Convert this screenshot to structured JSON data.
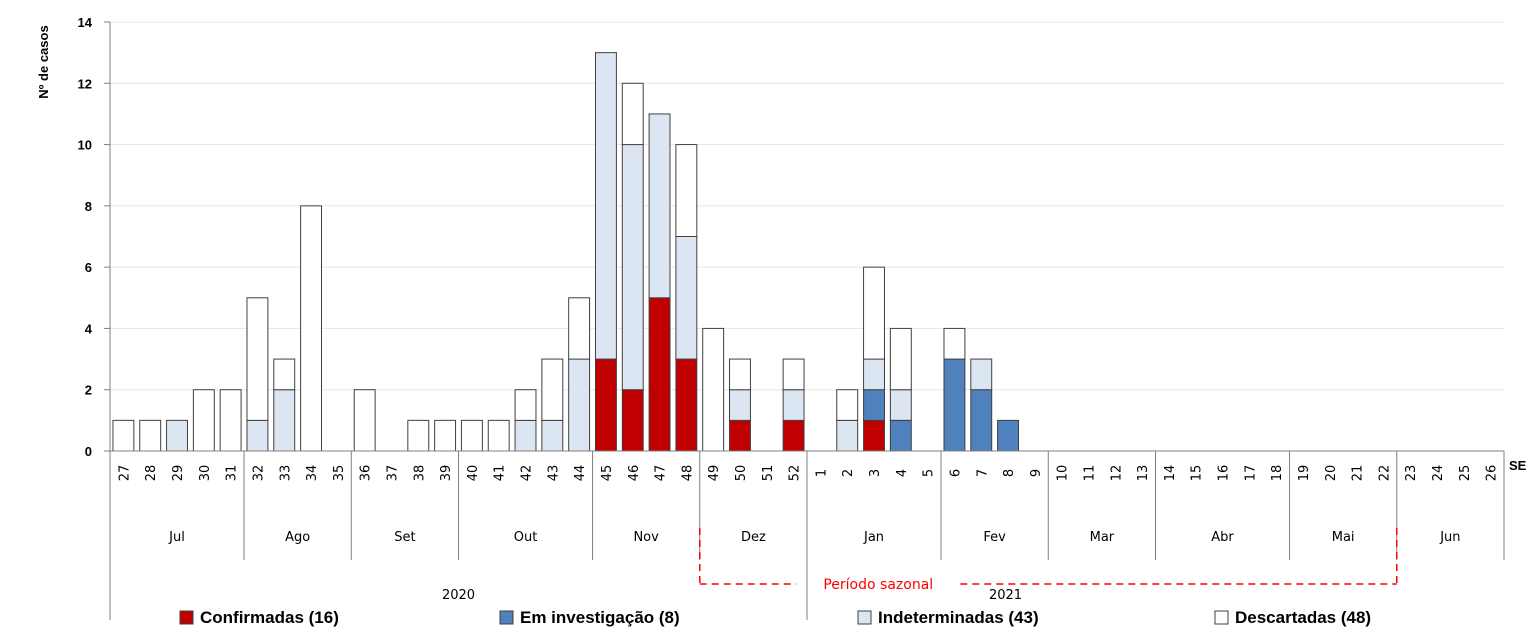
{
  "chart_data": {
    "type": "bar",
    "stacked": true,
    "ylabel": "Nº de casos",
    "xlabel": "SE",
    "ylim": [
      0,
      14
    ],
    "yticks": [
      0,
      2,
      4,
      6,
      8,
      10,
      12,
      14
    ],
    "categories": [
      "27",
      "28",
      "29",
      "30",
      "31",
      "32",
      "33",
      "34",
      "35",
      "36",
      "37",
      "38",
      "39",
      "40",
      "41",
      "42",
      "43",
      "44",
      "45",
      "46",
      "47",
      "48",
      "49",
      "50",
      "51",
      "52",
      "1",
      "2",
      "3",
      "4",
      "5",
      "6",
      "7",
      "8",
      "9",
      "10",
      "11",
      "12",
      "13",
      "14",
      "15",
      "16",
      "17",
      "18",
      "19",
      "20",
      "21",
      "22",
      "23",
      "24",
      "25",
      "26"
    ],
    "months": [
      {
        "label": "Jul",
        "count": 5
      },
      {
        "label": "Ago",
        "count": 4
      },
      {
        "label": "Set",
        "count": 4
      },
      {
        "label": "Out",
        "count": 5
      },
      {
        "label": "Nov",
        "count": 4
      },
      {
        "label": "Dez",
        "count": 4
      },
      {
        "label": "Jan",
        "count": 5
      },
      {
        "label": "Fev",
        "count": 4
      },
      {
        "label": "Mar",
        "count": 4
      },
      {
        "label": "Abr",
        "count": 5
      },
      {
        "label": "Mai",
        "count": 4
      },
      {
        "label": "Jun",
        "count": 4
      }
    ],
    "years": [
      {
        "label": "2020",
        "count": 26
      },
      {
        "label": "2021",
        "count": 26
      }
    ],
    "series": [
      {
        "name": "Confirmadas (16)",
        "color": "#c00000",
        "values": [
          0,
          0,
          0,
          0,
          0,
          0,
          0,
          0,
          0,
          0,
          0,
          0,
          0,
          0,
          0,
          0,
          0,
          0,
          3,
          2,
          5,
          3,
          0,
          1,
          0,
          1,
          0,
          0,
          1,
          0,
          0,
          0,
          0,
          0,
          0,
          0,
          0,
          0,
          0,
          0,
          0,
          0,
          0,
          0,
          0,
          0,
          0,
          0,
          0,
          0,
          0,
          0
        ]
      },
      {
        "name": "Em investigação (8)",
        "color": "#4f81bd",
        "values": [
          0,
          0,
          0,
          0,
          0,
          0,
          0,
          0,
          0,
          0,
          0,
          0,
          0,
          0,
          0,
          0,
          0,
          0,
          0,
          0,
          0,
          0,
          0,
          0,
          0,
          0,
          0,
          0,
          1,
          1,
          0,
          3,
          2,
          1,
          0,
          0,
          0,
          0,
          0,
          0,
          0,
          0,
          0,
          0,
          0,
          0,
          0,
          0,
          0,
          0,
          0,
          0
        ]
      },
      {
        "name": "Indeterminadas (43)",
        "color": "#dce6f2",
        "values": [
          0,
          0,
          1,
          0,
          0,
          1,
          2,
          0,
          0,
          0,
          0,
          0,
          0,
          0,
          0,
          1,
          1,
          3,
          10,
          8,
          6,
          4,
          0,
          1,
          0,
          1,
          0,
          1,
          1,
          1,
          0,
          0,
          1,
          0,
          0,
          0,
          0,
          0,
          0,
          0,
          0,
          0,
          0,
          0,
          0,
          0,
          0,
          0,
          0,
          0,
          0,
          0
        ]
      },
      {
        "name": "Descartadas (48)",
        "color": "#ffffff",
        "values": [
          1,
          1,
          0,
          2,
          2,
          4,
          1,
          8,
          0,
          2,
          0,
          1,
          1,
          1,
          1,
          1,
          2,
          2,
          0,
          2,
          0,
          3,
          4,
          1,
          0,
          1,
          0,
          1,
          3,
          2,
          0,
          1,
          0,
          0,
          0,
          0,
          0,
          0,
          0,
          0,
          0,
          0,
          0,
          0,
          0,
          0,
          0,
          0,
          0,
          0,
          0,
          0
        ]
      }
    ],
    "annotations": [
      {
        "text": "Período sazonal",
        "color": "#ff0000",
        "from_week": "49",
        "to_week": "22"
      }
    ],
    "grid": "horizontal",
    "legend_position": "bottom"
  }
}
